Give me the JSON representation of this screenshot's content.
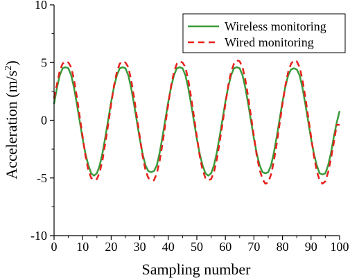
{
  "chart_data": {
    "type": "line",
    "title": "",
    "xlabel": "Sampling number",
    "ylabel_base": "Acceleration (m/s",
    "ylabel_sup": "2",
    "ylabel_close": ")",
    "xlim": [
      0,
      100
    ],
    "ylim": [
      -10,
      10
    ],
    "x_ticks": [
      0,
      10,
      20,
      30,
      40,
      50,
      60,
      70,
      80,
      90,
      100
    ],
    "y_ticks": [
      -10,
      -5,
      0,
      5,
      10
    ],
    "grid": false,
    "legend_position": "top-right",
    "series": [
      {
        "name": "Wireless monitoring",
        "color": "#3a9a3a",
        "style": "solid",
        "x": [
          0,
          1,
          2,
          3,
          4,
          5,
          6,
          7,
          8,
          9,
          10,
          11,
          12,
          13,
          14,
          15,
          16,
          17,
          18,
          19,
          20,
          21,
          22,
          23,
          24,
          25,
          26,
          27,
          28,
          29,
          30,
          31,
          32,
          33,
          34,
          35,
          36,
          37,
          38,
          39,
          40,
          41,
          42,
          43,
          44,
          45,
          46,
          47,
          48,
          49,
          50,
          51,
          52,
          53,
          54,
          55,
          56,
          57,
          58,
          59,
          60,
          61,
          62,
          63,
          64,
          65,
          66,
          67,
          68,
          69,
          70,
          71,
          72,
          73,
          74,
          75,
          76,
          77,
          78,
          79,
          80,
          81,
          82,
          83,
          84,
          85,
          86,
          87,
          88,
          89,
          90,
          91,
          92,
          93,
          94,
          95,
          96,
          97,
          98,
          99,
          100
        ],
        "y": [
          1.4,
          2.8,
          3.9,
          4.5,
          4.6,
          4.5,
          3.9,
          2.8,
          1.4,
          -0.1,
          -1.6,
          -2.9,
          -3.9,
          -4.6,
          -4.8,
          -4.6,
          -3.9,
          -2.8,
          -1.4,
          0.1,
          1.6,
          2.9,
          3.9,
          4.5,
          4.6,
          4.5,
          3.9,
          2.8,
          1.4,
          -0.1,
          -1.6,
          -2.9,
          -3.9,
          -4.4,
          -4.5,
          -4.4,
          -3.9,
          -2.8,
          -1.4,
          0.1,
          1.6,
          2.9,
          3.9,
          4.5,
          4.6,
          4.5,
          3.9,
          2.8,
          1.4,
          -0.1,
          -1.6,
          -2.9,
          -3.9,
          -4.6,
          -4.8,
          -4.6,
          -3.9,
          -2.8,
          -1.4,
          0.1,
          1.6,
          2.9,
          3.9,
          4.5,
          4.6,
          4.5,
          3.9,
          2.8,
          1.4,
          -0.1,
          -1.6,
          -2.9,
          -3.9,
          -4.5,
          -4.6,
          -4.5,
          -3.9,
          -2.8,
          -1.4,
          0.1,
          1.6,
          2.9,
          3.9,
          4.4,
          4.5,
          4.4,
          3.9,
          2.8,
          1.4,
          -0.1,
          -1.6,
          -2.9,
          -3.9,
          -4.6,
          -4.7,
          -4.6,
          -3.9,
          -2.8,
          -1.4,
          -0.2,
          0.8
        ]
      },
      {
        "name": "Wired monitoring",
        "color": "#e8201b",
        "style": "dashed",
        "x": [
          0,
          1,
          2,
          3,
          4,
          5,
          6,
          7,
          8,
          9,
          10,
          11,
          12,
          13,
          14,
          15,
          16,
          17,
          18,
          19,
          20,
          21,
          22,
          23,
          24,
          25,
          26,
          27,
          28,
          29,
          30,
          31,
          32,
          33,
          34,
          35,
          36,
          37,
          38,
          39,
          40,
          41,
          42,
          43,
          44,
          45,
          46,
          47,
          48,
          49,
          50,
          51,
          52,
          53,
          54,
          55,
          56,
          57,
          58,
          59,
          60,
          61,
          62,
          63,
          64,
          65,
          66,
          67,
          68,
          69,
          70,
          71,
          72,
          73,
          74,
          75,
          76,
          77,
          78,
          79,
          80,
          81,
          82,
          83,
          84,
          85,
          86,
          87,
          88,
          89,
          90,
          91,
          92,
          93,
          94,
          95,
          96,
          97,
          98,
          99,
          100
        ],
        "y": [
          1.9,
          3.1,
          4.3,
          4.9,
          5.1,
          5.0,
          4.6,
          3.5,
          2.0,
          0.3,
          -1.4,
          -3.1,
          -4.3,
          -5.0,
          -5.2,
          -5.1,
          -4.5,
          -3.4,
          -1.9,
          -0.3,
          1.4,
          3.0,
          4.2,
          4.9,
          5.1,
          5.0,
          4.6,
          3.5,
          2.0,
          0.3,
          -1.4,
          -3.1,
          -4.3,
          -5.0,
          -5.2,
          -5.2,
          -4.6,
          -3.5,
          -2.0,
          -0.3,
          1.4,
          3.0,
          4.2,
          4.9,
          5.1,
          5.0,
          4.6,
          3.5,
          2.0,
          0.3,
          -1.4,
          -3.1,
          -4.3,
          -5.0,
          -5.2,
          -5.1,
          -4.5,
          -3.4,
          -1.9,
          -0.3,
          1.4,
          3.0,
          4.2,
          4.9,
          5.2,
          5.1,
          4.6,
          3.5,
          2.0,
          0.3,
          -1.4,
          -3.1,
          -4.3,
          -5.1,
          -5.5,
          -5.4,
          -4.7,
          -3.5,
          -2.0,
          -0.3,
          1.4,
          3.0,
          4.2,
          4.9,
          5.2,
          5.1,
          4.6,
          3.5,
          2.0,
          0.3,
          -1.4,
          -3.1,
          -4.4,
          -5.2,
          -5.5,
          -5.3,
          -4.5,
          -3.3,
          -1.9,
          -0.4,
          -0.4
        ]
      }
    ]
  }
}
